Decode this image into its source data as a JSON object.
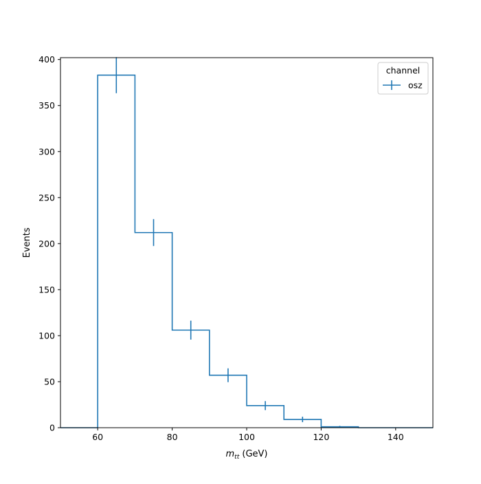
{
  "chart_data": {
    "type": "histogram-step",
    "title": "",
    "xlabel_math": "m",
    "xlabel_sub": "tt",
    "xlabel_unit": " (GeV)",
    "ylabel": "Events",
    "xlim": [
      50,
      150
    ],
    "ylim": [
      0,
      402
    ],
    "x_ticks": [
      60,
      80,
      100,
      120,
      140
    ],
    "x_tick_labels": [
      "60",
      "80",
      "100",
      "120",
      "140"
    ],
    "y_ticks": [
      0,
      50,
      100,
      150,
      200,
      250,
      300,
      350,
      400
    ],
    "y_tick_labels": [
      "0",
      "50",
      "100",
      "150",
      "200",
      "250",
      "300",
      "350",
      "400"
    ],
    "grid": false,
    "legend": {
      "title": "channel",
      "placement": "top-right",
      "entries": [
        "osz"
      ]
    },
    "series": [
      {
        "name": "osz",
        "color": "#1f77b4",
        "bin_edges": [
          50,
          60,
          70,
          80,
          90,
          100,
          110,
          120,
          130,
          140,
          150
        ],
        "values": [
          0,
          383,
          212,
          106,
          57,
          24,
          9,
          1,
          0,
          0
        ],
        "errors": [
          0,
          19.6,
          14.6,
          10.3,
          7.5,
          4.9,
          3.0,
          1.0,
          0,
          0
        ]
      }
    ]
  }
}
